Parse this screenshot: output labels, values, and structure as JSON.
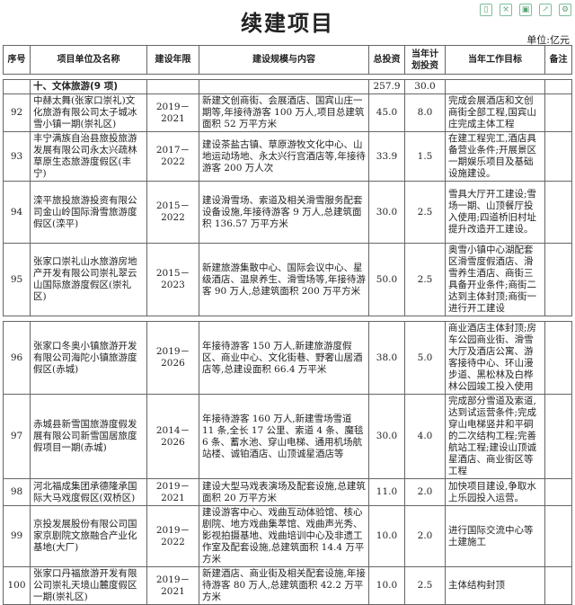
{
  "title": "续建项目",
  "toolbar": [
    "phone-icon",
    "fullscreen-icon",
    "save-icon",
    "share-icon",
    "settings-icon"
  ],
  "unit": "单位:亿元",
  "headers": [
    "序号",
    "项目单位及名称",
    "建设年限",
    "建设规模与内容",
    "总投资",
    "当年计划投资",
    "当年工作目标",
    "备注"
  ],
  "section": {
    "name": "十、文体旅游(9 项)",
    "total": "257.9",
    "plan": "30.0"
  },
  "rows": [
    {
      "no": "92",
      "name": "中赫太舞(张家口崇礼)文化旅游有限公司太子城冰雪小镇一期(崇礼区)",
      "years": "2019－2021",
      "content": "新建文创商街、会展酒店、国宾山庄一期等,年接待游客 100 万人,项目总建筑面积 52 万平方米",
      "total": "45.0",
      "plan": "8.0",
      "goal": "完成会展酒店和文创商街全部工程,国宾山庄完成主体工程",
      "note": ""
    },
    {
      "no": "93",
      "name": "丰宁满族自治县旅投旅游发展有限公司永太兴疏林草原生态旅游度假区(丰宁)",
      "years": "2017－2022",
      "content": "建设茶盐古镇、草原游牧文化中心、山地运动场地、永太兴行宫酒店等,年接待游客 200 万人次",
      "total": "33.9",
      "plan": "1.5",
      "goal": "在建工程完工,酒店具备营业条件;开展景区一期娱乐项目及基础设施建设。",
      "note": ""
    },
    {
      "no": "94",
      "name": "滦平旅投旅游投资有限公司金山岭国际滑雪旅游度假区(滦平)",
      "years": "2015－2022",
      "content": "建设滑雪场、索道及相关滑雪服务配套设备设施,年接待游客 9 万人,总建筑面积 136.57 万平方米",
      "total": "30.0",
      "plan": "2.5",
      "goal": "雪具大厅开工建设;雪场一期、山顶餐厅投入使用;四道桥旧村址提升改造开工建设。",
      "note": ""
    },
    {
      "no": "95",
      "name": "张家口崇礼山水旅游房地产开发有限公司崇礼翠云山国际旅游度假区(崇礼区)",
      "years": "2015－2023",
      "content": "新建旅游集散中心、国际会议中心、星级酒店、温泉养生、滑雪场等,年接待游客 90 万人,总建筑面积 200 万平方米",
      "total": "50.0",
      "plan": "2.5",
      "goal": "奥雪小镇中心湖配套区滑雪度假酒店、滑雪养生酒店、商街三具备开业条件;商街二达到主体封顶;商街一进行开工建设",
      "note": ""
    },
    {
      "no": "96",
      "name": "张家口冬奥小镇旅游开发有限公司海陀小镇旅游度假区(赤城)",
      "years": "2019－2026",
      "content": "年接待游客 150 万人,新建旅游度假区、商业中心、文化街巷、野奢山居酒店等,总建设面积 66.4 万平米",
      "total": "38.0",
      "plan": "5.0",
      "goal": "商业酒店主体封顶;房车公园商业街、滑雪大厅及酒店公寓、游客接待中心、环山漫步道、黑松林及白桦林公园竣工投入使用",
      "note": ""
    },
    {
      "no": "97",
      "name": "赤城县新雪国旅游度假发展有限公司新雪国居旅度假项目一期(赤城)",
      "years": "2014－2026",
      "content": "年接待游客 160 万人,新建雪场雪道 11 条,全长 17 公里、索道 4 条、魔毯 6 条、蓄水池、穿山电梯、通用机场航站楼、诚铂酒店、山顶诚星酒店等",
      "total": "30.0",
      "plan": "4.0",
      "goal": "完成部分雪道及索道,达到试运营条件;完成穿山电梯竖井和平硐的二次结构工程;完善航站工程;建设山顶诚星酒店、商业街区等工程",
      "note": ""
    },
    {
      "no": "98",
      "name": "河北福成集团承德隆承国际大马戏度假区(双桥区)",
      "years": "2019－2021",
      "content": "建设大型马戏表演场及配套设施,总建筑面积 20 万平方米",
      "total": "11.0",
      "plan": "2.0",
      "goal": "加快项目建设,争取水上乐园投入运营。",
      "note": ""
    },
    {
      "no": "99",
      "name": "京投发展股份有限公司国家京剧院文旅融合产业化基地(大厂)",
      "years": "2019－2022",
      "content": "建设游客中心、戏曲互动体验馆、核心剧院、地方戏曲集萃馆、戏曲声光秀、影视拍摄基地、戏曲培训中心及非遗工作室及配套设施,总建筑面积 14.4 万平方米",
      "total": "10.0",
      "plan": "2.0",
      "goal": "进行国际交流中心等土建施工",
      "note": ""
    },
    {
      "no": "100",
      "name": "张家口丹福旅游开发有限公司崇礼天境山麓度假区一期(崇礼区)",
      "years": "2019－2021",
      "content": "新建酒店、商业街及相关配套设施,年接待游客 80 万人,总建筑面积 42.2 万平方米",
      "total": "10.0",
      "plan": "2.5",
      "goal": "主体结构封顶",
      "note": ""
    }
  ]
}
